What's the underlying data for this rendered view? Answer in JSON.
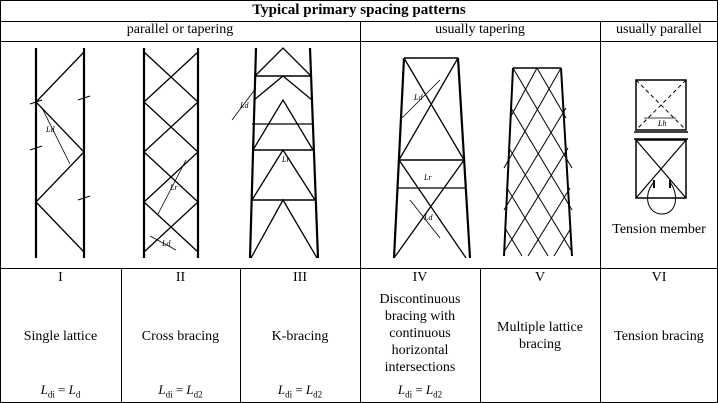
{
  "title": "Typical primary spacing patterns",
  "groups": [
    {
      "label": "parallel or tapering"
    },
    {
      "label": "usually tapering"
    },
    {
      "label": "usually parallel"
    }
  ],
  "patterns": [
    {
      "roman": "I",
      "name": "Single lattice",
      "formula_lhs": "L",
      "formula_lhs_sub": "di",
      "formula_rhs": "L",
      "formula_rhs_sub": "d"
    },
    {
      "roman": "II",
      "name": "Cross bracing",
      "formula_lhs": "L",
      "formula_lhs_sub": "di",
      "formula_rhs": "L",
      "formula_rhs_sub": "d2"
    },
    {
      "roman": "III",
      "name": "K-bracing",
      "formula_lhs": "L",
      "formula_lhs_sub": "di",
      "formula_rhs": "L",
      "formula_rhs_sub": "d2"
    },
    {
      "roman": "IV",
      "name": "Discontinuous bracing with continuous horizontal intersections",
      "formula_lhs": "L",
      "formula_lhs_sub": "di",
      "formula_rhs": "L",
      "formula_rhs_sub": "d2"
    },
    {
      "roman": "V",
      "name": "Multiple lattice bracing"
    },
    {
      "roman": "VI",
      "name": "Tension bracing"
    }
  ],
  "diagram_labels": {
    "ld": "Ld",
    "lr": "Lr",
    "ld2": "Ld",
    "lh": "Lh",
    "tension_member": "Tension member"
  }
}
